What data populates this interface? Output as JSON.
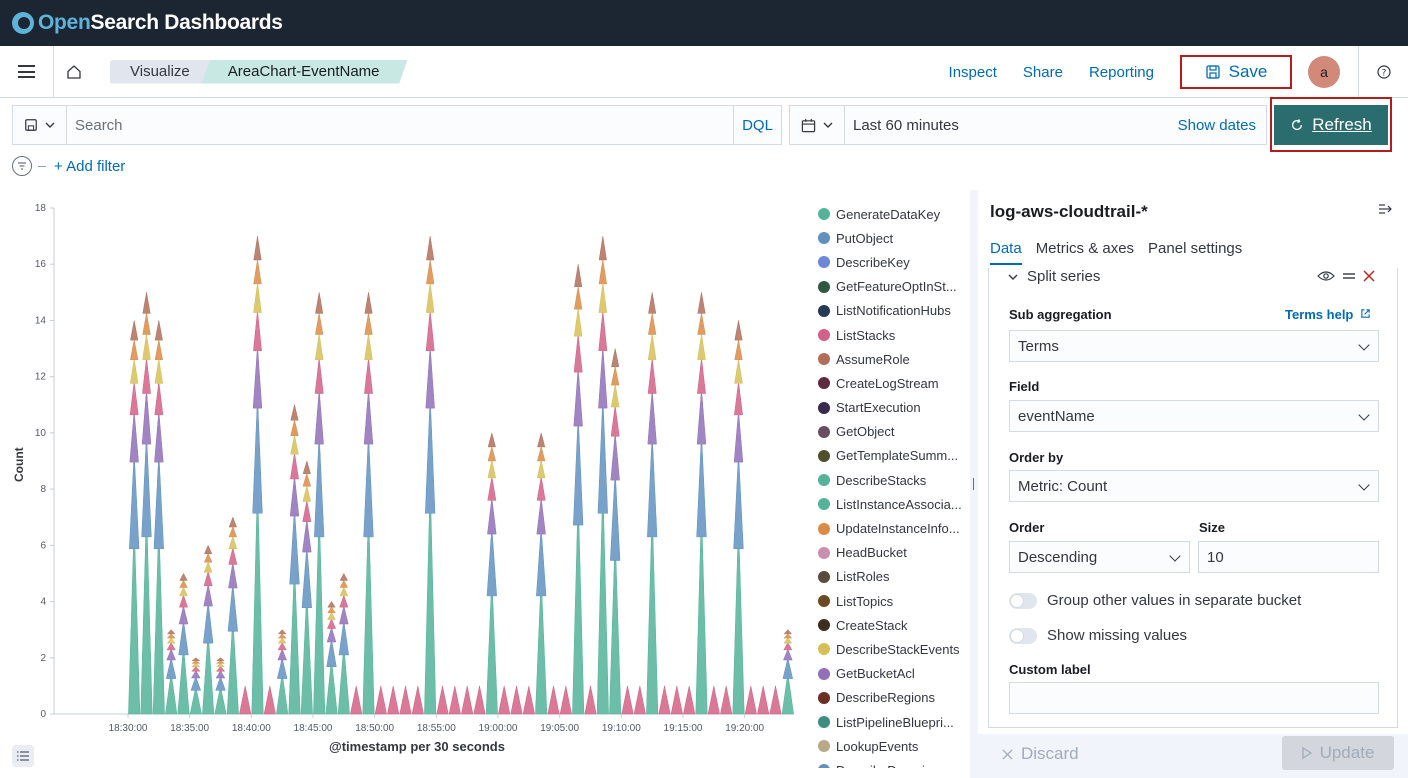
{
  "app": {
    "brand_open": "Open",
    "brand_rest": "Search Dashboards"
  },
  "breadcrumbs": [
    "Visualize",
    "AreaChart-EventName"
  ],
  "nav": {
    "inspect": "Inspect",
    "share": "Share",
    "reporting": "Reporting",
    "save": "Save",
    "avatar": "a"
  },
  "query": {
    "placeholder": "Search",
    "language": "DQL"
  },
  "date": {
    "range": "Last 60 minutes",
    "show_dates": "Show dates",
    "refresh": "Refresh"
  },
  "filters": {
    "add": "+ Add filter"
  },
  "chart_data": {
    "type": "area",
    "title": "",
    "xlabel": "@timestamp per 30 seconds",
    "ylabel": "Count",
    "ylim": [
      0,
      18
    ],
    "yticks": [
      0,
      2,
      4,
      6,
      8,
      10,
      12,
      14,
      16,
      18
    ],
    "xticks": [
      "18:30:00",
      "18:35:00",
      "18:40:00",
      "18:45:00",
      "18:50:00",
      "18:55:00",
      "19:00:00",
      "19:05:00",
      "19:10:00",
      "19:15:00",
      "19:20:00"
    ],
    "xlim_minutes": [
      -6,
      54
    ],
    "total_peaks": [
      [
        0.5,
        14
      ],
      [
        1.5,
        15
      ],
      [
        2.5,
        14
      ],
      [
        3.5,
        3
      ],
      [
        4.5,
        5
      ],
      [
        5.5,
        2
      ],
      [
        6.5,
        6
      ],
      [
        7.5,
        2
      ],
      [
        8.5,
        7
      ],
      [
        9.5,
        1
      ],
      [
        10.5,
        17
      ],
      [
        11.5,
        1
      ],
      [
        12.5,
        3
      ],
      [
        13.5,
        11
      ],
      [
        14.5,
        9
      ],
      [
        15.5,
        15
      ],
      [
        16.5,
        4
      ],
      [
        17.5,
        5
      ],
      [
        18.5,
        1
      ],
      [
        19.5,
        15
      ],
      [
        20.5,
        1
      ],
      [
        21.5,
        1
      ],
      [
        22.5,
        1
      ],
      [
        23.5,
        1
      ],
      [
        24.5,
        17
      ],
      [
        25.5,
        1
      ],
      [
        26.5,
        1
      ],
      [
        27.5,
        1
      ],
      [
        28.5,
        1
      ],
      [
        29.5,
        10
      ],
      [
        30.5,
        1
      ],
      [
        31.5,
        1
      ],
      [
        32.5,
        1
      ],
      [
        33.5,
        10
      ],
      [
        34.5,
        1
      ],
      [
        35.5,
        1
      ],
      [
        36.5,
        16
      ],
      [
        37.5,
        1
      ],
      [
        38.5,
        17
      ],
      [
        39.5,
        13
      ],
      [
        40.5,
        1
      ],
      [
        41.5,
        1
      ],
      [
        42.5,
        15
      ],
      [
        43.5,
        1
      ],
      [
        44.5,
        1
      ],
      [
        45.5,
        1
      ],
      [
        46.5,
        15
      ],
      [
        47.5,
        1
      ],
      [
        48.5,
        1
      ],
      [
        49.5,
        14
      ],
      [
        50.5,
        1
      ],
      [
        51.5,
        1
      ],
      [
        52.5,
        1
      ],
      [
        53.5,
        3
      ]
    ],
    "legend": [
      {
        "name": "GenerateDataKey",
        "color": "#54b399"
      },
      {
        "name": "PutObject",
        "color": "#6092c0"
      },
      {
        "name": "DescribeKey",
        "color": "#6f87d8"
      },
      {
        "name": "GetFeatureOptInSt...",
        "color": "#2f5744"
      },
      {
        "name": "ListNotificationHubs",
        "color": "#243a55"
      },
      {
        "name": "ListStacks",
        "color": "#d36086"
      },
      {
        "name": "AssumeRole",
        "color": "#b06e5a"
      },
      {
        "name": "CreateLogStream",
        "color": "#5e2a3e"
      },
      {
        "name": "StartExecution",
        "color": "#3b2a50"
      },
      {
        "name": "GetObject",
        "color": "#6b4d5f"
      },
      {
        "name": "GetTemplateSumm...",
        "color": "#4f4f2e"
      },
      {
        "name": "DescribeStacks",
        "color": "#54b399"
      },
      {
        "name": "ListInstanceAssocia...",
        "color": "#54b399"
      },
      {
        "name": "UpdateInstanceInfo...",
        "color": "#da8b45"
      },
      {
        "name": "HeadBucket",
        "color": "#ca8eae"
      },
      {
        "name": "ListRoles",
        "color": "#5a4b3a"
      },
      {
        "name": "ListTopics",
        "color": "#6b4a23"
      },
      {
        "name": "CreateStack",
        "color": "#3e2e22"
      },
      {
        "name": "DescribeStackEvents",
        "color": "#d6bf57"
      },
      {
        "name": "GetBucketAcl",
        "color": "#9170b8"
      },
      {
        "name": "DescribeRegions",
        "color": "#6b2e24"
      },
      {
        "name": "ListPipelineBluepri...",
        "color": "#3b8f7c"
      },
      {
        "name": "LookupEvents",
        "color": "#b9a888"
      },
      {
        "name": "DescribeDomains",
        "color": "#6092c0"
      }
    ]
  },
  "panel": {
    "index_pattern": "log-aws-cloudtrail-*",
    "tabs": [
      "Data",
      "Metrics & axes",
      "Panel settings"
    ],
    "split_series": "Split series",
    "sub_aggregation_label": "Sub aggregation",
    "terms_help": "Terms help",
    "sub_aggregation_value": "Terms",
    "field_label": "Field",
    "field_value": "eventName",
    "order_by_label": "Order by",
    "order_by_value": "Metric: Count",
    "order_label": "Order",
    "order_value": "Descending",
    "size_label": "Size",
    "size_value": "10",
    "group_other": "Group other values in separate bucket",
    "show_missing": "Show missing values",
    "custom_label": "Custom label",
    "discard": "Discard",
    "update": "Update"
  }
}
